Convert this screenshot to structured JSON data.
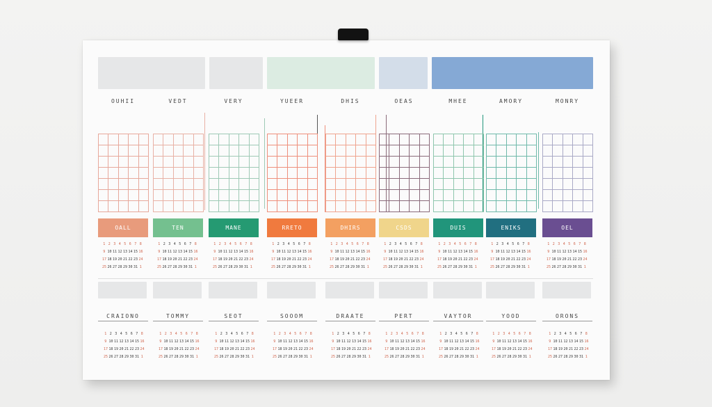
{
  "months_top": [
    {
      "name": "OUHII",
      "swatch": "#e8e9ea",
      "band_label": "OALL",
      "band_color": "#e89b7c",
      "grid_color": "#e7a89b"
    },
    {
      "name": "VEDT",
      "swatch": "#e8e9ea",
      "band_label": "TEN",
      "band_color": "#74c08f",
      "grid_color": "#e8b1a5"
    },
    {
      "name": "VERY",
      "swatch": "#e8e9ea",
      "band_label": "MANE",
      "band_color": "#259a72",
      "grid_color": "#9ec9b5"
    },
    {
      "name": "YUEER",
      "swatch": "#dcece2",
      "band_label": "RRETO",
      "band_color": "#f07a3e",
      "grid_color": "#ee8f7b"
    },
    {
      "name": "DHIS",
      "swatch": "#dcece2",
      "band_label": "DHIRS",
      "band_color": "#f3a061",
      "grid_color": "#efa48f"
    },
    {
      "name": "OEAS",
      "swatch": "#cfdbe8",
      "band_label": "CSDS",
      "band_color": "#f0d58b",
      "grid_color": "#8a6a7a"
    },
    {
      "name": "MHEE",
      "swatch": "#86aad6",
      "band_label": "DUIS",
      "band_color": "#21957b",
      "grid_color": "#8ec6ad"
    },
    {
      "name": "AMORY",
      "swatch": "#86aad6",
      "band_label": "ENIKS",
      "band_color": "#216f80",
      "grid_color": "#6fb9aa"
    },
    {
      "name": "MONRY",
      "swatch": "#86aad6",
      "band_label": "OEL",
      "band_color": "#6a4e91",
      "grid_color": "#a9a9c6"
    }
  ],
  "months_bottom": [
    {
      "name": "CRAIONO"
    },
    {
      "name": "TOMMY"
    },
    {
      "name": "SEOT"
    },
    {
      "name": "SOOOM"
    },
    {
      "name": "DRAATE"
    },
    {
      "name": "PERT"
    },
    {
      "name": "VAYTOR"
    },
    {
      "name": "YOOD"
    },
    {
      "name": "ORONS"
    }
  ],
  "colors": {
    "board": "#fbfbfb",
    "swatch_light": "#e6e7e8",
    "mini_red": "#d0634a",
    "mini_dark": "#3a3a3a"
  },
  "mini_days": [
    "1",
    "2",
    "3",
    "4",
    "5",
    "6",
    "7",
    "8",
    "9",
    "10",
    "11",
    "12",
    "13",
    "14",
    "15",
    "16",
    "17",
    "18",
    "19",
    "20",
    "21",
    "22",
    "23",
    "24",
    "25",
    "26",
    "27",
    "28",
    "29",
    "30",
    "31"
  ]
}
